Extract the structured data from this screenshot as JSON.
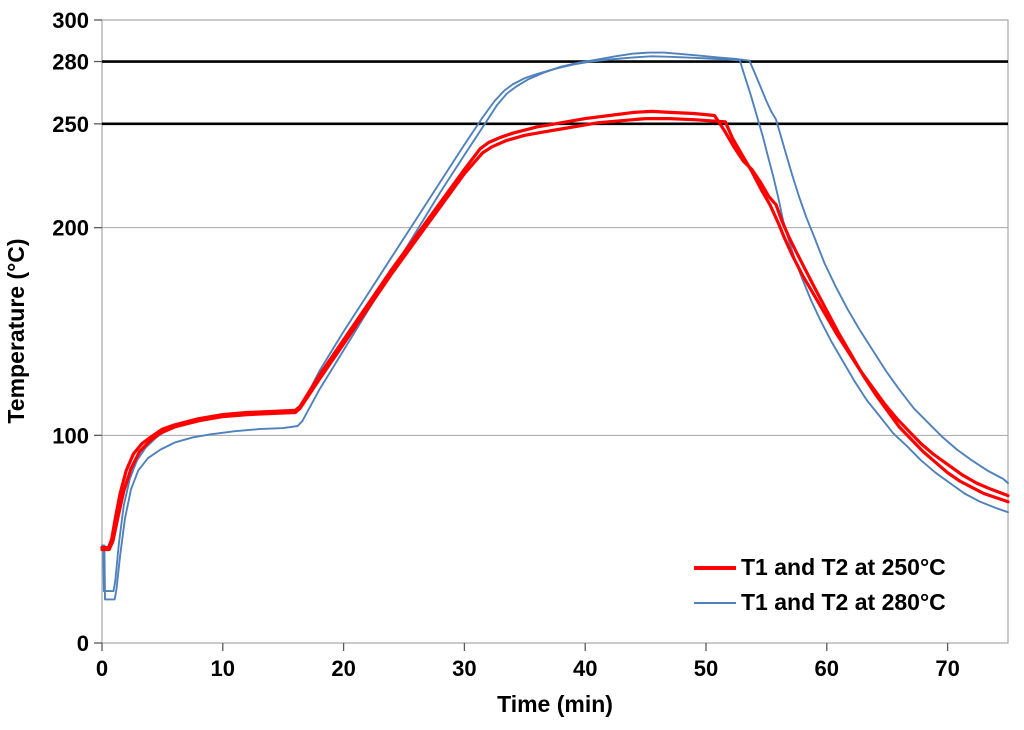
{
  "chart_data": {
    "type": "line",
    "title": "",
    "xlabel": "Time (min)",
    "ylabel": "Temperature (°C)",
    "xlim": [
      0,
      75
    ],
    "ylim": [
      0,
      300
    ],
    "xticks": [
      0,
      10,
      20,
      30,
      40,
      50,
      60,
      70
    ],
    "yticks": [
      0,
      100,
      200,
      250,
      280,
      300
    ],
    "gridlines_y": [
      100,
      200,
      300
    ],
    "reference_lines_y": [
      250,
      280
    ],
    "grid_on": true,
    "legend": {
      "position": "bottom-right",
      "entries": [
        {
          "label": "T1 and T2 at 250°C",
          "color": "#FF0000",
          "weight": "thick"
        },
        {
          "label": "T1 and T2 at 280°C",
          "color": "#4F81BD",
          "weight": "thin"
        }
      ]
    },
    "colors": {
      "red_series": "#FF0000",
      "blue_series": "#4F81BD",
      "grid": "#A6A6A6",
      "reference": "#000000",
      "axis": "#A6A6A6",
      "tick": "#595959",
      "text": "#000000",
      "background": "#FFFFFF"
    },
    "series": [
      {
        "id": "t2-280",
        "name": "T2 at 280°C setpoint",
        "color": "#4F81BD",
        "width": 1.9,
        "points": [
          [
            0,
            47
          ],
          [
            0.2,
            47
          ],
          [
            0.25,
            21
          ],
          [
            1.05,
            21
          ],
          [
            1.2,
            26
          ],
          [
            1.5,
            42
          ],
          [
            1.9,
            60
          ],
          [
            2.4,
            74
          ],
          [
            3,
            83
          ],
          [
            3.8,
            89
          ],
          [
            4.8,
            93
          ],
          [
            6,
            96.5
          ],
          [
            7.5,
            99
          ],
          [
            9,
            100.5
          ],
          [
            11,
            102
          ],
          [
            13,
            103
          ],
          [
            15,
            103.5
          ],
          [
            16.2,
            104.5
          ],
          [
            16.6,
            107
          ],
          [
            18,
            122
          ],
          [
            20,
            141
          ],
          [
            22,
            160
          ],
          [
            24,
            179
          ],
          [
            26,
            198
          ],
          [
            28,
            217
          ],
          [
            30,
            235
          ],
          [
            31.7,
            250
          ],
          [
            32.7,
            259
          ],
          [
            33.5,
            264.5
          ],
          [
            34.3,
            268
          ],
          [
            35.3,
            271.5
          ],
          [
            36.5,
            274.5
          ],
          [
            38,
            277.5
          ],
          [
            39.5,
            279.5
          ],
          [
            41,
            281
          ],
          [
            42.5,
            282.5
          ],
          [
            44,
            283.8
          ],
          [
            45.3,
            284.3
          ],
          [
            46.5,
            284.3
          ],
          [
            48,
            283.6
          ],
          [
            49.5,
            282.8
          ],
          [
            51,
            282
          ],
          [
            52.5,
            281.2
          ],
          [
            53.6,
            280.4
          ],
          [
            54,
            275
          ],
          [
            54.5,
            268
          ],
          [
            55,
            261
          ],
          [
            55.4,
            256
          ],
          [
            55.8,
            252
          ],
          [
            56.1,
            246
          ],
          [
            56.6,
            236
          ],
          [
            57.1,
            226
          ],
          [
            57.7,
            215
          ],
          [
            58.3,
            205
          ],
          [
            59,
            195
          ],
          [
            59.8,
            183
          ],
          [
            60.7,
            172
          ],
          [
            61.7,
            161
          ],
          [
            62.7,
            151
          ],
          [
            63.8,
            141
          ],
          [
            64.9,
            131
          ],
          [
            66,
            122
          ],
          [
            67.2,
            113
          ],
          [
            68.4,
            106
          ],
          [
            69.6,
            99
          ],
          [
            70.8,
            93
          ],
          [
            72,
            88
          ],
          [
            73.3,
            83
          ],
          [
            74.6,
            79
          ],
          [
            75,
            77
          ]
        ]
      },
      {
        "id": "t1-280",
        "name": "T1 at 280°C setpoint",
        "color": "#4F81BD",
        "width": 1.9,
        "points": [
          [
            0,
            46
          ],
          [
            0.1,
            46
          ],
          [
            0.15,
            25
          ],
          [
            0.95,
            25
          ],
          [
            1.1,
            30
          ],
          [
            1.4,
            48
          ],
          [
            1.8,
            66
          ],
          [
            2.3,
            79
          ],
          [
            2.9,
            88
          ],
          [
            3.6,
            94
          ],
          [
            4.5,
            99
          ],
          [
            5.5,
            103
          ],
          [
            7,
            106
          ],
          [
            9,
            108.5
          ],
          [
            11,
            110
          ],
          [
            13,
            111
          ],
          [
            15,
            111.5
          ],
          [
            16.2,
            112.5
          ],
          [
            16.6,
            115
          ],
          [
            18,
            131
          ],
          [
            20,
            150
          ],
          [
            22,
            168
          ],
          [
            24,
            186
          ],
          [
            26,
            204
          ],
          [
            28,
            222
          ],
          [
            30,
            240
          ],
          [
            31.5,
            253
          ],
          [
            32.5,
            261
          ],
          [
            33.3,
            266
          ],
          [
            34,
            269
          ],
          [
            35,
            272
          ],
          [
            36,
            274
          ],
          [
            37.5,
            276.5
          ],
          [
            39,
            278.5
          ],
          [
            40.5,
            280
          ],
          [
            42,
            281
          ],
          [
            44,
            282
          ],
          [
            45.5,
            282.5
          ],
          [
            47,
            282.3
          ],
          [
            49,
            281.8
          ],
          [
            51,
            281.2
          ],
          [
            52.8,
            280.6
          ],
          [
            53.2,
            273
          ],
          [
            53.7,
            264
          ],
          [
            54.2,
            254
          ],
          [
            54.7,
            244
          ],
          [
            55.1,
            235
          ],
          [
            55.6,
            224
          ],
          [
            56,
            214
          ],
          [
            56.4,
            203
          ],
          [
            56.9,
            193
          ],
          [
            57.4,
            184
          ],
          [
            58,
            175
          ],
          [
            58.7,
            165
          ],
          [
            59.5,
            155
          ],
          [
            60.4,
            145
          ],
          [
            61.3,
            136
          ],
          [
            62.3,
            126
          ],
          [
            63.3,
            117
          ],
          [
            64.4,
            109
          ],
          [
            65.5,
            101
          ],
          [
            66.6,
            95
          ],
          [
            67.8,
            88
          ],
          [
            69,
            82
          ],
          [
            70.2,
            77
          ],
          [
            71.4,
            72
          ],
          [
            72.7,
            68
          ],
          [
            74,
            65
          ],
          [
            75,
            63
          ]
        ]
      },
      {
        "id": "t2-250",
        "name": "T2 at 250°C setpoint",
        "color": "#FF0000",
        "width": 3.2,
        "points": [
          [
            0,
            45
          ],
          [
            0.6,
            45
          ],
          [
            0.9,
            49
          ],
          [
            1.3,
            60
          ],
          [
            1.8,
            73
          ],
          [
            2.4,
            84
          ],
          [
            3.1,
            92
          ],
          [
            3.9,
            97
          ],
          [
            4.8,
            101
          ],
          [
            6,
            104
          ],
          [
            8,
            107
          ],
          [
            10,
            109
          ],
          [
            12,
            110
          ],
          [
            14,
            110.5
          ],
          [
            16,
            111
          ],
          [
            16.4,
            113
          ],
          [
            18,
            127
          ],
          [
            20,
            144
          ],
          [
            22,
            161
          ],
          [
            24,
            178
          ],
          [
            26,
            194
          ],
          [
            28,
            210
          ],
          [
            30,
            226
          ],
          [
            31.5,
            236
          ],
          [
            32.3,
            239
          ],
          [
            33.5,
            242
          ],
          [
            35,
            244.5
          ],
          [
            36.5,
            246
          ],
          [
            38,
            247.5
          ],
          [
            39.5,
            249
          ],
          [
            41,
            250.5
          ],
          [
            43,
            251.5
          ],
          [
            45,
            252.5
          ],
          [
            47,
            252.5
          ],
          [
            49,
            252
          ],
          [
            51.6,
            251
          ],
          [
            52.2,
            243
          ],
          [
            53,
            235
          ],
          [
            53.8,
            227
          ],
          [
            54.6,
            218
          ],
          [
            55.3,
            211
          ],
          [
            56,
            202
          ],
          [
            56.5,
            195
          ],
          [
            57.2,
            186
          ],
          [
            58,
            177
          ],
          [
            58.8,
            169
          ],
          [
            59.8,
            159
          ],
          [
            60.8,
            149
          ],
          [
            61.8,
            140
          ],
          [
            62.8,
            131
          ],
          [
            63.8,
            123
          ],
          [
            64.8,
            115
          ],
          [
            65.8,
            108
          ],
          [
            66.8,
            102
          ],
          [
            67.8,
            96
          ],
          [
            68.8,
            91
          ],
          [
            70,
            86
          ],
          [
            71.2,
            81
          ],
          [
            72.4,
            77
          ],
          [
            73.6,
            74
          ],
          [
            75,
            71
          ]
        ]
      },
      {
        "id": "t1-250",
        "name": "T1 at 250°C setpoint",
        "color": "#FF0000",
        "width": 3.2,
        "points": [
          [
            0,
            46
          ],
          [
            0.55,
            46
          ],
          [
            0.8,
            50
          ],
          [
            1.1,
            60
          ],
          [
            1.5,
            72
          ],
          [
            2,
            83
          ],
          [
            2.6,
            91
          ],
          [
            3.3,
            96
          ],
          [
            4,
            99
          ],
          [
            5,
            103
          ],
          [
            6,
            105
          ],
          [
            8,
            108
          ],
          [
            10,
            110
          ],
          [
            12,
            111
          ],
          [
            14,
            111.5
          ],
          [
            16,
            112
          ],
          [
            16.4,
            114
          ],
          [
            18,
            129
          ],
          [
            20,
            146
          ],
          [
            22,
            163
          ],
          [
            24,
            180
          ],
          [
            26,
            196
          ],
          [
            28,
            212
          ],
          [
            30,
            228
          ],
          [
            31.3,
            238
          ],
          [
            32,
            241
          ],
          [
            33,
            243.5
          ],
          [
            34,
            245.5
          ],
          [
            35,
            247
          ],
          [
            36,
            248.5
          ],
          [
            37,
            249.5
          ],
          [
            38,
            250.5
          ],
          [
            39,
            251.5
          ],
          [
            40,
            252.5
          ],
          [
            42,
            254
          ],
          [
            44,
            255.5
          ],
          [
            45.5,
            256
          ],
          [
            47,
            255.5
          ],
          [
            49,
            255
          ],
          [
            50.7,
            254
          ],
          [
            51.5,
            247
          ],
          [
            52.3,
            239
          ],
          [
            53.1,
            232
          ],
          [
            53.8,
            228
          ],
          [
            54.5,
            222
          ],
          [
            55.2,
            215
          ],
          [
            55.8,
            211
          ],
          [
            56.3,
            203
          ],
          [
            56.9,
            195
          ],
          [
            57.5,
            188
          ],
          [
            58.2,
            180
          ],
          [
            59,
            171
          ],
          [
            60,
            160
          ],
          [
            61,
            149
          ],
          [
            62,
            139
          ],
          [
            63,
            129
          ],
          [
            64,
            120
          ],
          [
            65,
            112
          ],
          [
            66,
            104
          ],
          [
            67,
            98
          ],
          [
            68,
            92
          ],
          [
            69,
            87
          ],
          [
            70,
            82
          ],
          [
            71,
            78
          ],
          [
            72,
            75
          ],
          [
            73,
            72
          ],
          [
            74,
            70
          ],
          [
            75,
            68
          ]
        ]
      }
    ]
  }
}
